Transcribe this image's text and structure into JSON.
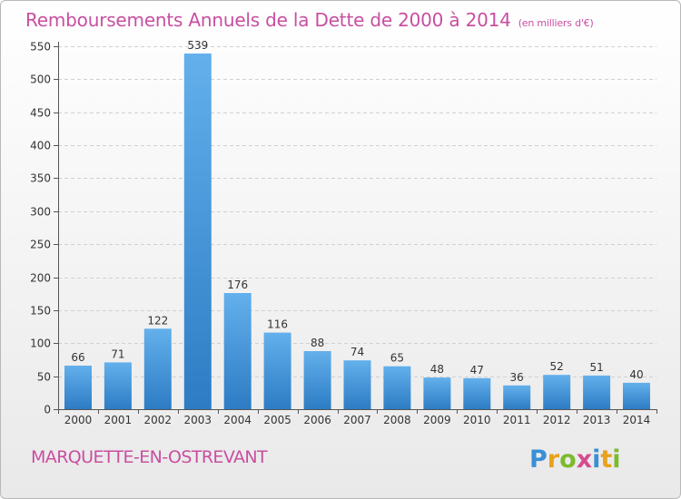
{
  "title": "Remboursements Annuels de la Dette de 2000 à 2014",
  "unit": "(en milliers d'€)",
  "place": "MARQUETTE-EN-OSTREVANT",
  "logo": {
    "letters": [
      "P",
      "r",
      "o",
      "x",
      "i",
      "t",
      "i"
    ],
    "colors": [
      "#3a8fd6",
      "#e8a21c",
      "#7dba2e",
      "#d64a8f",
      "#3a8fd6",
      "#e8a21c",
      "#7dba2e"
    ]
  },
  "colors": {
    "accent": "#c84fa0",
    "bar": "#3d8fd5",
    "bar_light": "#63b0ec"
  },
  "chart_data": {
    "type": "bar",
    "title": "Remboursements Annuels de la Dette de 2000 à 2014",
    "xlabel": "",
    "ylabel": "",
    "categories": [
      "2000",
      "2001",
      "2002",
      "2003",
      "2004",
      "2005",
      "2006",
      "2007",
      "2008",
      "2009",
      "2010",
      "2011",
      "2012",
      "2013",
      "2014"
    ],
    "values": [
      66,
      71,
      122,
      539,
      176,
      116,
      88,
      74,
      65,
      48,
      47,
      36,
      52,
      51,
      40
    ],
    "ylim": [
      0,
      550
    ],
    "yticks": [
      0,
      50,
      100,
      150,
      200,
      250,
      300,
      350,
      400,
      450,
      500,
      550
    ],
    "grid": true
  }
}
